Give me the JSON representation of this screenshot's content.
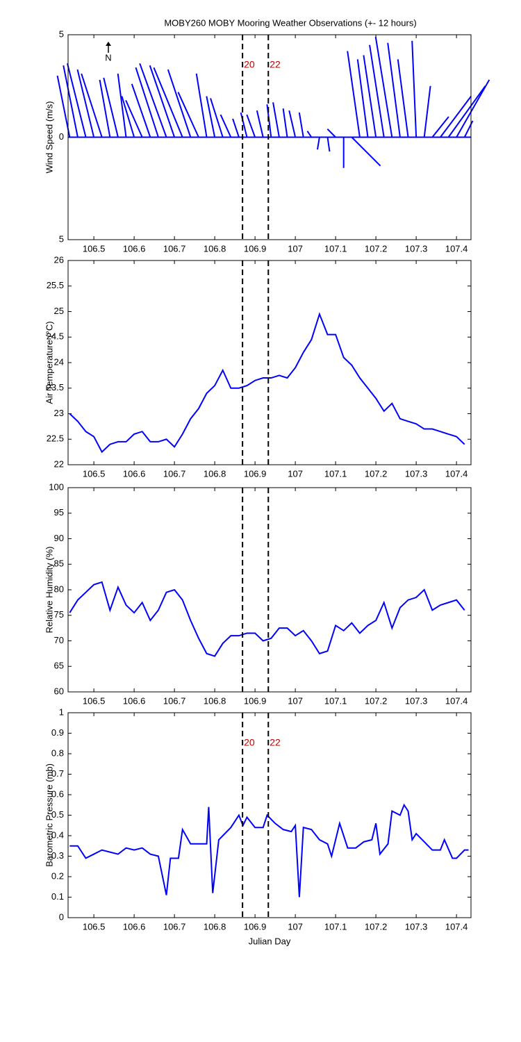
{
  "chart_data": [
    {
      "type": "stick",
      "title": "MOBY260 MOBY Mooring Weather Observations (+- 12 hours)",
      "y_label": "Wind Speed (m/s)",
      "north": "N",
      "color": "#0000ff",
      "xlim": [
        106.436,
        107.436
      ],
      "xticks": [
        106.5,
        106.6,
        106.7,
        106.8,
        106.9,
        107,
        107.1,
        107.2,
        107.3,
        107.4
      ],
      "ylim": [
        -5,
        5
      ],
      "yticks": [
        {
          "value": -5,
          "label": "5"
        },
        0,
        {
          "value": 5,
          "label": "5"
        }
      ],
      "vlines": [
        {
          "value": 106.869,
          "label": "20"
        },
        {
          "value": 106.933,
          "label": "22"
        }
      ],
      "x": [
        106.44,
        106.46,
        106.48,
        106.5,
        106.52,
        106.54,
        106.56,
        106.58,
        106.6,
        106.62,
        106.64,
        106.66,
        106.68,
        106.7,
        106.72,
        106.74,
        106.76,
        106.78,
        106.8,
        106.82,
        106.84,
        106.86,
        106.88,
        106.9,
        106.92,
        106.94,
        106.96,
        106.98,
        107,
        107.02,
        107.04,
        107.06,
        107.08,
        107.1,
        107.12,
        107.14,
        107.16,
        107.18,
        107.2,
        107.22,
        107.24,
        107.26,
        107.28,
        107.3,
        107.32,
        107.34,
        107.36,
        107.38,
        107.4,
        107.42
      ],
      "u": [
        -0.6,
        -0.7,
        -0.9,
        -0.8,
        -1.0,
        -0.5,
        -0.7,
        -0.4,
        -0.6,
        -0.8,
        -0.9,
        -1.1,
        -1.3,
        -1.2,
        -1.4,
        -1.1,
        -1.0,
        -0.5,
        -0.4,
        -0.6,
        -0.5,
        -0.3,
        -0.3,
        -0.4,
        -0.3,
        -0.2,
        -0.3,
        -0.2,
        -0.3,
        -0.2,
        -0.2,
        -0.1,
        0.1,
        -0.4,
        0.0,
        1.4,
        -0.6,
        -0.5,
        -0.6,
        -0.7,
        -0.8,
        -0.6,
        -0.5,
        -0.2,
        0.3,
        0.8,
        1.5,
        1.8,
        1.6,
        0.4
      ],
      "v": [
        3.0,
        3.5,
        3.6,
        3.3,
        3.1,
        2.8,
        2.9,
        3.1,
        2.0,
        1.8,
        2.6,
        3.4,
        3.6,
        3.5,
        3.4,
        3.3,
        2.2,
        3.1,
        2.0,
        1.9,
        1.1,
        0.9,
        1.2,
        1.1,
        1.3,
        1.6,
        1.7,
        1.4,
        1.3,
        1.2,
        0.3,
        -0.6,
        -0.7,
        0.4,
        -1.5,
        -1.4,
        4.2,
        3.8,
        4.0,
        4.5,
        4.9,
        4.6,
        3.8,
        4.7,
        2.5,
        1.0,
        2.0,
        2.5,
        2.8,
        0.8
      ]
    },
    {
      "type": "line",
      "y_label": "Air Temperature (°C)",
      "color": "#0000ff",
      "xlim": [
        106.436,
        107.436
      ],
      "xticks": [
        106.5,
        106.6,
        106.7,
        106.8,
        106.9,
        107,
        107.1,
        107.2,
        107.3,
        107.4
      ],
      "ylim": [
        22,
        26
      ],
      "yticks": [
        22,
        22.5,
        23,
        23.5,
        24,
        24.5,
        25,
        25.5,
        26
      ],
      "vlines": [
        106.869,
        106.933
      ],
      "x": [
        106.44,
        106.46,
        106.48,
        106.5,
        106.52,
        106.54,
        106.56,
        106.58,
        106.6,
        106.62,
        106.64,
        106.66,
        106.68,
        106.7,
        106.72,
        106.74,
        106.76,
        106.78,
        106.8,
        106.82,
        106.84,
        106.86,
        106.88,
        106.9,
        106.92,
        106.94,
        106.96,
        106.98,
        107,
        107.02,
        107.04,
        107.06,
        107.08,
        107.1,
        107.12,
        107.14,
        107.16,
        107.18,
        107.2,
        107.22,
        107.24,
        107.26,
        107.28,
        107.3,
        107.32,
        107.34,
        107.36,
        107.38,
        107.4,
        107.42
      ],
      "values": [
        23.0,
        22.85,
        22.65,
        22.55,
        22.25,
        22.4,
        22.45,
        22.45,
        22.6,
        22.65,
        22.45,
        22.45,
        22.5,
        22.35,
        22.6,
        22.9,
        23.1,
        23.4,
        23.55,
        23.85,
        23.5,
        23.5,
        23.55,
        23.65,
        23.7,
        23.7,
        23.75,
        23.7,
        23.9,
        24.2,
        24.45,
        24.95,
        24.55,
        24.55,
        24.1,
        23.95,
        23.7,
        23.5,
        23.3,
        23.05,
        23.2,
        22.9,
        22.85,
        22.8,
        22.7,
        22.7,
        22.65,
        22.6,
        22.55,
        22.4
      ]
    },
    {
      "type": "line",
      "y_label": "Relative Humidity (%)",
      "color": "#0000ff",
      "xlim": [
        106.436,
        107.436
      ],
      "xticks": [
        106.5,
        106.6,
        106.7,
        106.8,
        106.9,
        107,
        107.1,
        107.2,
        107.3,
        107.4
      ],
      "ylim": [
        60,
        100
      ],
      "yticks": [
        60,
        65,
        70,
        75,
        80,
        85,
        90,
        95,
        100
      ],
      "vlines": [
        106.869,
        106.933
      ],
      "x": [
        106.44,
        106.46,
        106.48,
        106.5,
        106.52,
        106.54,
        106.56,
        106.58,
        106.6,
        106.62,
        106.64,
        106.66,
        106.68,
        106.7,
        106.72,
        106.74,
        106.76,
        106.78,
        106.8,
        106.82,
        106.84,
        106.86,
        106.88,
        106.9,
        106.92,
        106.94,
        106.96,
        106.98,
        107,
        107.02,
        107.04,
        107.06,
        107.08,
        107.1,
        107.12,
        107.14,
        107.16,
        107.18,
        107.2,
        107.22,
        107.24,
        107.26,
        107.28,
        107.3,
        107.32,
        107.34,
        107.36,
        107.38,
        107.4,
        107.42
      ],
      "values": [
        75.5,
        78,
        79.5,
        81,
        81.5,
        76,
        80.5,
        77,
        75.5,
        77.5,
        74,
        76,
        79.5,
        80,
        78,
        74,
        70.5,
        67.5,
        67,
        69.5,
        71,
        71,
        71.5,
        71.5,
        70,
        70.5,
        72.5,
        72.5,
        71,
        72,
        70,
        67.5,
        68,
        73,
        72,
        73.5,
        71.5,
        73,
        74,
        77.5,
        72.5,
        76.5,
        78,
        78.5,
        80,
        76,
        77,
        77.5,
        78,
        76
      ]
    },
    {
      "type": "line",
      "y_label": "Barometric Pressure (mb)",
      "x_label": "Julian Day",
      "color": "#0000ff",
      "xlim": [
        106.436,
        107.436
      ],
      "xticks": [
        106.5,
        106.6,
        106.7,
        106.8,
        106.9,
        107,
        107.1,
        107.2,
        107.3,
        107.4
      ],
      "ylim": [
        0,
        1
      ],
      "yticks": [
        0,
        0.1,
        0.2,
        0.3,
        0.4,
        0.5,
        0.6,
        0.7,
        0.8,
        0.9,
        1
      ],
      "vlines": [
        {
          "value": 106.869,
          "label": "20"
        },
        {
          "value": 106.933,
          "label": "22"
        }
      ],
      "x": [
        106.44,
        106.46,
        106.48,
        106.5,
        106.52,
        106.54,
        106.56,
        106.58,
        106.6,
        106.62,
        106.64,
        106.66,
        106.68,
        106.69,
        106.71,
        106.72,
        106.74,
        106.76,
        106.78,
        106.785,
        106.795,
        106.81,
        106.84,
        106.86,
        106.87,
        106.88,
        106.9,
        106.92,
        106.93,
        106.95,
        106.97,
        106.99,
        107,
        107.01,
        107.02,
        107.04,
        107.06,
        107.08,
        107.09,
        107.11,
        107.13,
        107.15,
        107.17,
        107.19,
        107.2,
        107.21,
        107.23,
        107.24,
        107.26,
        107.27,
        107.28,
        107.29,
        107.3,
        107.32,
        107.34,
        107.36,
        107.37,
        107.39,
        107.4,
        107.42,
        107.43
      ],
      "values": [
        0.35,
        0.35,
        0.29,
        0.31,
        0.33,
        0.32,
        0.31,
        0.34,
        0.33,
        0.34,
        0.31,
        0.3,
        0.11,
        0.29,
        0.29,
        0.43,
        0.36,
        0.36,
        0.36,
        0.54,
        0.12,
        0.38,
        0.44,
        0.5,
        0.45,
        0.49,
        0.44,
        0.44,
        0.5,
        0.46,
        0.43,
        0.42,
        0.45,
        0.1,
        0.44,
        0.43,
        0.38,
        0.36,
        0.3,
        0.46,
        0.34,
        0.34,
        0.37,
        0.38,
        0.46,
        0.31,
        0.36,
        0.52,
        0.5,
        0.55,
        0.52,
        0.38,
        0.41,
        0.37,
        0.33,
        0.33,
        0.38,
        0.29,
        0.29,
        0.33,
        0.33
      ]
    }
  ]
}
